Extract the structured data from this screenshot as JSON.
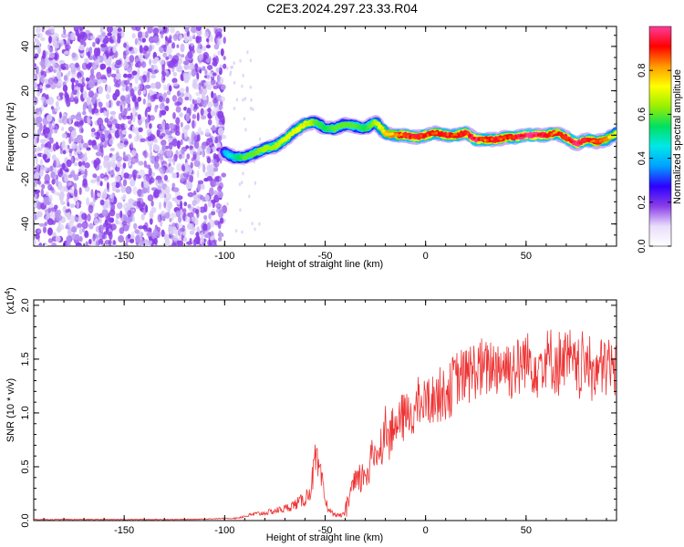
{
  "title": "C2E3.2024.297.23.33.R04",
  "colors": {
    "snr_line": "#ee3333",
    "sparse_points": "#d9cdf6",
    "dense_points": "#8a3ee8"
  },
  "chart_data": [
    {
      "type": "heatmap",
      "xlabel": "Height of straight line (km)",
      "ylabel": "Frequency (Hz)",
      "xlim": [
        -195,
        95
      ],
      "ylim": [
        -50,
        49
      ],
      "xticks": [
        -150,
        -100,
        -50,
        0,
        50
      ],
      "xtick_labels": [
        "-150",
        "-100",
        "-50",
        "0",
        "50"
      ],
      "yticks": [
        -40,
        -20,
        0,
        20,
        40
      ],
      "ytick_labels": [
        "-40",
        "-20",
        "0",
        "20",
        "40"
      ],
      "colorbar": {
        "label": "Normalized spectral amplitude",
        "range": [
          0,
          1
        ],
        "ticks": [
          0.0,
          0.2,
          0.4,
          0.6,
          0.8
        ],
        "tick_labels": [
          "0.0",
          "0.2",
          "0.4",
          "0.6",
          "0.8"
        ],
        "colors": [
          "#ffffff",
          "#e9ddfb",
          "#8a3ee8",
          "#2d00ff",
          "#00a0ff",
          "#00e8e8",
          "#00e060",
          "#9aef00",
          "#ffff00",
          "#ff9a00",
          "#ff0000",
          "#ff3c9c"
        ]
      },
      "noise_region": {
        "x_range": [
          -195,
          -100
        ],
        "y_range": [
          -50,
          49
        ]
      },
      "trace": {
        "x": [
          -100,
          -95,
          -90,
          -85,
          -80,
          -75,
          -70,
          -65,
          -60,
          -55,
          -50,
          -45,
          -40,
          -35,
          -30,
          -25,
          -20,
          -15,
          -10,
          -5,
          0,
          5,
          10,
          15,
          20,
          25,
          30,
          35,
          40,
          45,
          50,
          55,
          60,
          65,
          70,
          75,
          80,
          85,
          90,
          95
        ],
        "y": [
          -8,
          -10,
          -10,
          -8,
          -6,
          -5,
          -2,
          2,
          5,
          6,
          3,
          3,
          5,
          4,
          3,
          6,
          1,
          0,
          0,
          -1,
          0,
          1,
          0,
          0,
          1,
          -2,
          -2,
          -2,
          -1,
          -1,
          0,
          0,
          0,
          1,
          -1,
          -4,
          -2,
          -3,
          -2,
          1
        ],
        "amplitude": [
          0.3,
          0.4,
          0.5,
          0.5,
          0.55,
          0.55,
          0.6,
          0.6,
          0.65,
          0.5,
          0.45,
          0.5,
          0.5,
          0.5,
          0.45,
          0.55,
          0.7,
          0.75,
          0.85,
          0.85,
          0.85,
          0.8,
          0.85,
          0.8,
          0.85,
          0.9,
          0.8,
          0.85,
          0.8,
          0.85,
          0.95,
          0.9,
          0.85,
          0.8,
          0.85,
          0.9,
          0.85,
          0.8,
          0.75,
          0.6
        ]
      }
    },
    {
      "type": "line",
      "xlabel": "Height of straight line (km)",
      "ylabel": "SNR (10 * v/v)",
      "y_multiplier": "(x10",
      "y_multiplier_exp": "4",
      "y_multiplier_close": ")",
      "xlim": [
        -195,
        95
      ],
      "ylim": [
        0,
        2.05
      ],
      "xticks": [
        -150,
        -100,
        -50,
        0,
        50
      ],
      "xtick_labels": [
        "-150",
        "-100",
        "-50",
        "0",
        "50"
      ],
      "yticks": [
        0.0,
        0.5,
        1.0,
        1.5,
        2.0
      ],
      "ytick_labels": [
        "0.0",
        "0.5",
        "1.0",
        "1.5",
        "2.0"
      ],
      "series": [
        {
          "x": [
            -195,
            -180,
            -160,
            -140,
            -120,
            -100,
            -95,
            -90,
            -85,
            -80,
            -75,
            -70,
            -65,
            -60,
            -57,
            -55,
            -53,
            -51,
            -50,
            -48,
            -46,
            -44,
            -42,
            -40,
            -38,
            -36,
            -34,
            -32,
            -30,
            -28,
            -26,
            -24,
            -22,
            -20,
            -18,
            -16,
            -14,
            -12,
            -10,
            -8,
            -6,
            -4,
            -2,
            0,
            5,
            10,
            15,
            20,
            25,
            30,
            35,
            40,
            45,
            50,
            55,
            60,
            65,
            70,
            75,
            80,
            85,
            90,
            95
          ],
          "y": [
            0.01,
            0.01,
            0.01,
            0.01,
            0.01,
            0.02,
            0.02,
            0.04,
            0.06,
            0.07,
            0.09,
            0.11,
            0.15,
            0.2,
            0.3,
            0.55,
            0.45,
            0.3,
            0.18,
            0.1,
            0.06,
            0.05,
            0.05,
            0.06,
            0.25,
            0.3,
            0.35,
            0.4,
            0.45,
            0.5,
            0.6,
            0.65,
            0.7,
            0.85,
            0.8,
            0.85,
            0.9,
            0.95,
            0.95,
            1.0,
            1.0,
            1.05,
            1.1,
            1.1,
            1.15,
            1.2,
            1.3,
            1.35,
            1.4,
            1.4,
            1.45,
            1.45,
            1.4,
            1.5,
            1.45,
            1.5,
            1.45,
            1.5,
            1.4,
            1.45,
            1.4,
            1.45,
            1.4
          ],
          "noise": 0.12
        }
      ]
    }
  ]
}
